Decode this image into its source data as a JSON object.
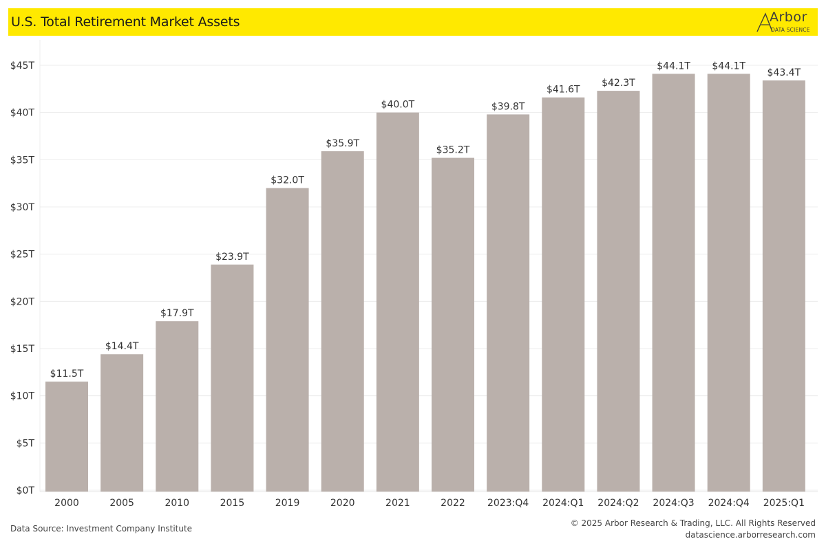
{
  "header": {
    "title": "U.S. Total Retirement Market Assets",
    "logo_word": "Arbor",
    "logo_sub": "DATA SCIENCE"
  },
  "footer": {
    "source": "Data Source: Investment Company Institute",
    "copyright": "© 2025 Arbor Research & Trading, LLC. All Rights Reserved",
    "website": "datascience.arborresearch.com"
  },
  "colors": {
    "bar": "#bab0ab",
    "title_bar": "#ffe900",
    "grid": "#ececec",
    "text": "#333333"
  },
  "chart_data": {
    "type": "bar",
    "title": "U.S. Total Retirement Market Assets",
    "xlabel": "",
    "ylabel": "",
    "categories": [
      "2000",
      "2005",
      "2010",
      "2015",
      "2019",
      "2020",
      "2021",
      "2022",
      "2023:Q4",
      "2024:Q1",
      "2024:Q2",
      "2024:Q3",
      "2024:Q4",
      "2025:Q1"
    ],
    "values": [
      11.5,
      14.4,
      17.9,
      23.9,
      32.0,
      35.9,
      40.0,
      35.2,
      39.8,
      41.6,
      42.3,
      44.1,
      44.1,
      43.4
    ],
    "data_labels": [
      "$11.5T",
      "$14.4T",
      "$17.9T",
      "$23.9T",
      "$32.0T",
      "$35.9T",
      "$40.0T",
      "$35.2T",
      "$39.8T",
      "$41.6T",
      "$42.3T",
      "$44.1T",
      "$44.1T",
      "$43.4T"
    ],
    "yticks": [
      0,
      5,
      10,
      15,
      20,
      25,
      30,
      35,
      40,
      45
    ],
    "ytick_labels": [
      "$0T",
      "$5T",
      "$10T",
      "$15T",
      "$20T",
      "$25T",
      "$30T",
      "$35T",
      "$40T",
      "$45T"
    ],
    "ylim": [
      0,
      45
    ],
    "grid": true,
    "legend": "none"
  }
}
